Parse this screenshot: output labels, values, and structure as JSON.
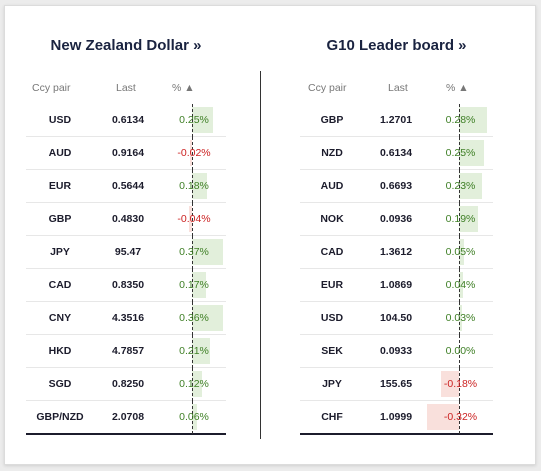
{
  "left": {
    "title": "New Zealand Dollar »",
    "headers": {
      "pair": "Ccy pair",
      "last": "Last",
      "pct": "% ▲"
    },
    "rows": [
      {
        "pair": "USD",
        "last": "0.6134",
        "pct": "0.25%",
        "value": 0.25
      },
      {
        "pair": "AUD",
        "last": "0.9164",
        "pct": "-0.02%",
        "value": -0.02
      },
      {
        "pair": "EUR",
        "last": "0.5644",
        "pct": "0.18%",
        "value": 0.18
      },
      {
        "pair": "GBP",
        "last": "0.4830",
        "pct": "-0.04%",
        "value": -0.04
      },
      {
        "pair": "JPY",
        "last": "95.47",
        "pct": "0.37%",
        "value": 0.37
      },
      {
        "pair": "CAD",
        "last": "0.8350",
        "pct": "0.17%",
        "value": 0.17
      },
      {
        "pair": "CNY",
        "last": "4.3516",
        "pct": "0.36%",
        "value": 0.36
      },
      {
        "pair": "HKD",
        "last": "4.7857",
        "pct": "0.21%",
        "value": 0.21
      },
      {
        "pair": "SGD",
        "last": "0.8250",
        "pct": "0.12%",
        "value": 0.12
      },
      {
        "pair": "GBP/NZD",
        "last": "2.0708",
        "pct": "0.06%",
        "value": 0.06
      }
    ]
  },
  "right": {
    "title": "G10 Leader board »",
    "headers": {
      "pair": "Ccy pair",
      "last": "Last",
      "pct": "% ▲"
    },
    "rows": [
      {
        "pair": "GBP",
        "last": "1.2701",
        "pct": "0.28%",
        "value": 0.28
      },
      {
        "pair": "NZD",
        "last": "0.6134",
        "pct": "0.25%",
        "value": 0.25
      },
      {
        "pair": "AUD",
        "last": "0.6693",
        "pct": "0.23%",
        "value": 0.23
      },
      {
        "pair": "NOK",
        "last": "0.0936",
        "pct": "0.19%",
        "value": 0.19
      },
      {
        "pair": "CAD",
        "last": "1.3612",
        "pct": "0.05%",
        "value": 0.05
      },
      {
        "pair": "EUR",
        "last": "1.0869",
        "pct": "0.04%",
        "value": 0.04
      },
      {
        "pair": "USD",
        "last": "104.50",
        "pct": "0.03%",
        "value": 0.03
      },
      {
        "pair": "SEK",
        "last": "0.0933",
        "pct": "0.00%",
        "value": 0.0
      },
      {
        "pair": "JPY",
        "last": "155.65",
        "pct": "-0.18%",
        "value": -0.18
      },
      {
        "pair": "CHF",
        "last": "1.0999",
        "pct": "-0.32%",
        "value": -0.32
      }
    ]
  },
  "colors": {
    "positive": "#3e7f25",
    "negative": "#cc2222",
    "positive_bar": "#e2efdb",
    "negative_bar": "#f9e0dc"
  }
}
